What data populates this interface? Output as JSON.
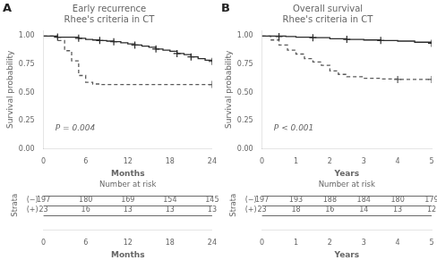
{
  "chart_data": [
    {
      "type": "line",
      "panel_label": "A",
      "title": "Early recurrence\nRhee's criteria in CT",
      "xlabel": "Months",
      "ylabel": "Survival probability",
      "annotations": [
        "P = 0.004"
      ],
      "xlim": [
        0,
        24
      ],
      "ylim": [
        0.0,
        1.05
      ],
      "xticks": [
        0,
        6,
        12,
        18,
        24
      ],
      "yticks": [
        {
          "value": 0,
          "label": "0.00"
        },
        0.25,
        {
          "value": 0.5,
          "label": "0.50"
        },
        0.75,
        {
          "value": 1,
          "label": "1.00"
        }
      ],
      "grid": false,
      "series": [
        {
          "x": [
            0,
            1,
            2,
            3,
            4,
            5,
            6,
            7,
            8,
            9,
            10,
            11,
            12,
            13,
            14,
            15,
            16,
            17,
            18,
            19,
            20,
            21,
            22,
            23,
            24
          ],
          "values": [
            1.0,
            1.0,
            0.99,
            0.99,
            0.99,
            0.98,
            0.97,
            0.965,
            0.96,
            0.955,
            0.95,
            0.94,
            0.93,
            0.92,
            0.91,
            0.9,
            0.885,
            0.875,
            0.865,
            0.845,
            0.835,
            0.815,
            0.8,
            0.785,
            0.775
          ],
          "censor_x": [
            2,
            5,
            8,
            10,
            13,
            16,
            19,
            21,
            24
          ],
          "censor_values": [
            0.99,
            0.98,
            0.96,
            0.95,
            0.92,
            0.885,
            0.845,
            0.815,
            0.775
          ],
          "color": "#2b2b2b",
          "line_style": "solid",
          "marker": "cross"
        },
        {
          "x": [
            0,
            2,
            3,
            4,
            5,
            6,
            7,
            8,
            9,
            10,
            24
          ],
          "values": [
            1.0,
            0.96,
            0.87,
            0.78,
            0.65,
            0.59,
            0.575,
            0.57,
            0.57,
            0.57,
            0.57
          ],
          "censor_x": [
            24
          ],
          "censor_values": [
            0.57
          ],
          "color": "#5a5a5a",
          "line_style": "dashed",
          "marker": "cross"
        }
      ],
      "risk_table": {
        "title": "Number at risk",
        "row_label": "Strata",
        "xlabel": "Months",
        "x": [
          0,
          6,
          12,
          18,
          24
        ],
        "rows": [
          {
            "name": "(−)",
            "values": [
              197,
              180,
              169,
              154,
              145
            ]
          },
          {
            "name": "(+)",
            "values": [
              23,
              16,
              13,
              13,
              13
            ]
          }
        ]
      }
    },
    {
      "type": "line",
      "panel_label": "B",
      "title": "Overall survival\nRhee's criteria in CT",
      "xlabel": "Years",
      "ylabel": "Survival probability",
      "annotations": [
        "P < 0.001"
      ],
      "xlim": [
        0,
        5
      ],
      "ylim": [
        0.0,
        1.05
      ],
      "xticks": [
        0,
        1,
        2,
        3,
        4,
        5
      ],
      "yticks": [
        {
          "value": 0,
          "label": "0.00"
        },
        0.25,
        {
          "value": 0.5,
          "label": "0.50"
        },
        0.75,
        {
          "value": 1,
          "label": "1.00"
        }
      ],
      "grid": false,
      "series": [
        {
          "x": [
            0,
            0.3,
            0.7,
            1.0,
            1.5,
            2.0,
            2.5,
            3.0,
            3.5,
            4.0,
            4.5,
            5.0
          ],
          "values": [
            1.0,
            1.0,
            0.995,
            0.99,
            0.985,
            0.975,
            0.97,
            0.965,
            0.96,
            0.955,
            0.945,
            0.935
          ],
          "censor_x": [
            0.5,
            1.5,
            2.5,
            3.5,
            5.0
          ],
          "censor_values": [
            0.995,
            0.985,
            0.97,
            0.96,
            0.935
          ],
          "color": "#2b2b2b",
          "line_style": "solid",
          "marker": "cross"
        },
        {
          "x": [
            0,
            0.25,
            0.5,
            0.75,
            1.0,
            1.25,
            1.5,
            1.75,
            2.0,
            2.25,
            2.5,
            3.0,
            3.5,
            4.0,
            4.5,
            5.0
          ],
          "values": [
            1.0,
            0.965,
            0.92,
            0.875,
            0.84,
            0.8,
            0.77,
            0.74,
            0.69,
            0.66,
            0.64,
            0.625,
            0.62,
            0.615,
            0.615,
            0.615
          ],
          "censor_x": [
            4.0,
            5.0
          ],
          "censor_values": [
            0.615,
            0.615
          ],
          "color": "#5a5a5a",
          "line_style": "dashed",
          "marker": "cross"
        }
      ],
      "risk_table": {
        "title": "Number at risk",
        "row_label": "Strata",
        "xlabel": "Years",
        "x": [
          0,
          1,
          2,
          3,
          4,
          5
        ],
        "rows": [
          {
            "name": "(−)",
            "values": [
              197,
              193,
              188,
              184,
              180,
              179
            ]
          },
          {
            "name": "(+)",
            "values": [
              23,
              18,
              16,
              14,
              13,
              12
            ]
          }
        ]
      }
    }
  ]
}
